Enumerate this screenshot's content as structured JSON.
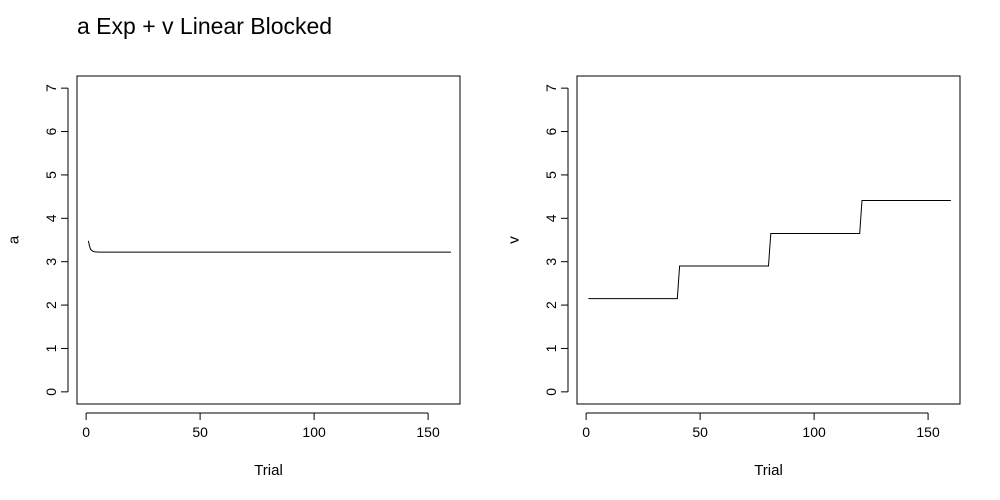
{
  "title": "a Exp + v Linear Blocked",
  "chart_data": [
    {
      "type": "line",
      "title": "",
      "xlabel": "Trial",
      "ylabel": "a",
      "xlim": [
        -4,
        164
      ],
      "ylim": [
        -0.28,
        7.28
      ],
      "xticks": [
        0,
        50,
        100,
        150
      ],
      "yticks": [
        0,
        1,
        2,
        3,
        4,
        5,
        6,
        7
      ],
      "grid": false,
      "legend": "none",
      "series": [
        {
          "color": "#000000",
          "points": [
            [
              1,
              3.48
            ],
            [
              1.5,
              3.36
            ],
            [
              2,
              3.28
            ],
            [
              3,
              3.24
            ],
            [
              4,
              3.225
            ],
            [
              6,
              3.22
            ],
            [
              160,
              3.22
            ]
          ]
        }
      ]
    },
    {
      "type": "line",
      "title": "",
      "xlabel": "Trial",
      "ylabel": "v",
      "xlim": [
        -4,
        164
      ],
      "ylim": [
        -0.28,
        7.28
      ],
      "xticks": [
        0,
        50,
        100,
        150
      ],
      "yticks": [
        0,
        1,
        2,
        3,
        4,
        5,
        6,
        7
      ],
      "grid": false,
      "legend": "none",
      "series": [
        {
          "color": "#000000",
          "points": [
            [
              1,
              2.15
            ],
            [
              40,
              2.15
            ],
            [
              41,
              2.9
            ],
            [
              80,
              2.9
            ],
            [
              81,
              3.65
            ],
            [
              120,
              3.65
            ],
            [
              121,
              4.41
            ],
            [
              160,
              4.41
            ]
          ]
        }
      ]
    }
  ]
}
